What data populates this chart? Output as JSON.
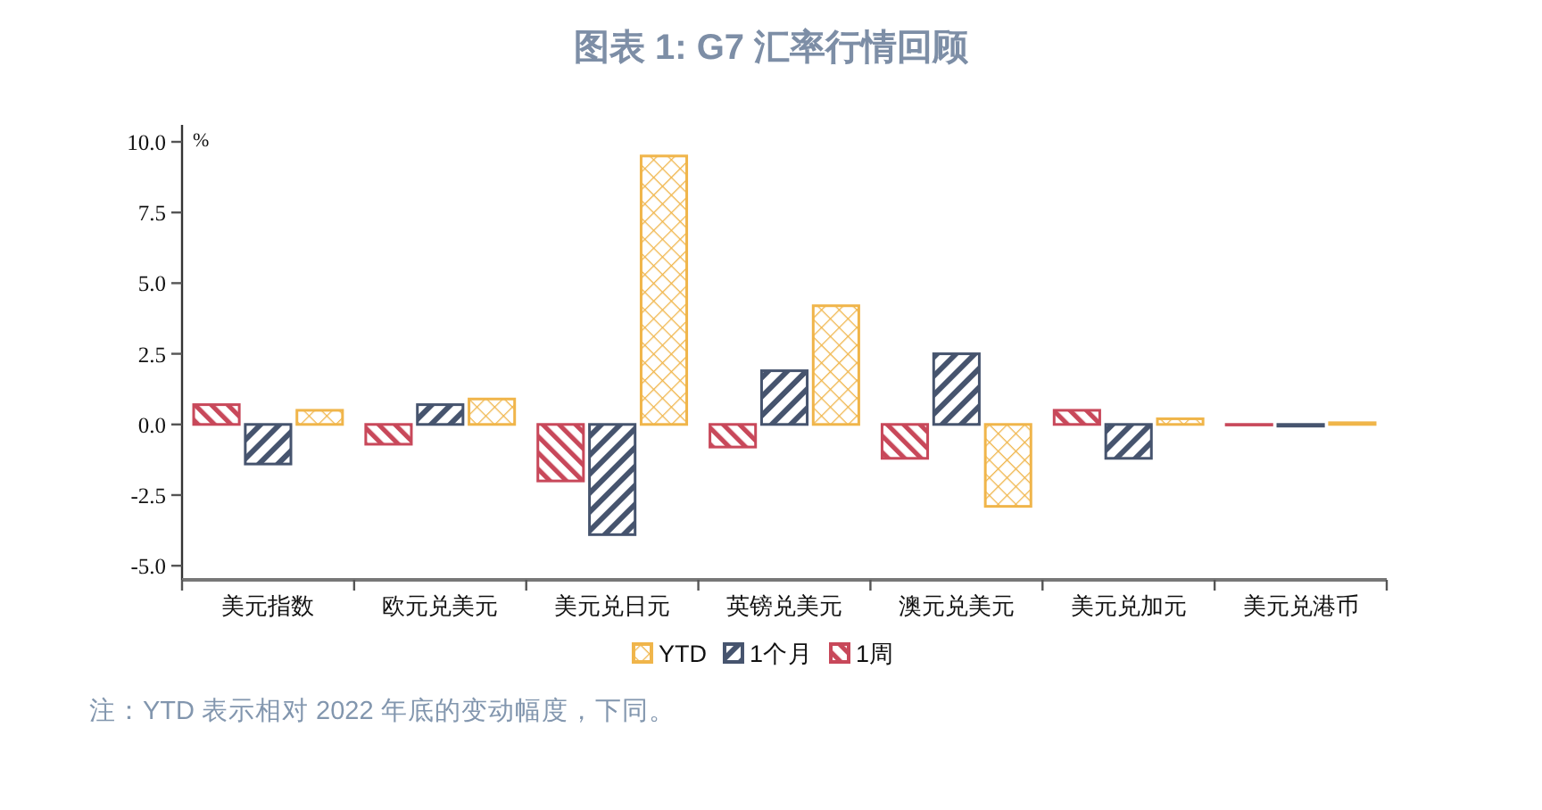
{
  "chart_data": {
    "type": "bar",
    "title": "图表 1: G7 汇率行情回顾",
    "ylabel": "%",
    "categories": [
      "美元指数",
      "欧元兑美元",
      "美元兑日元",
      "英镑兑美元",
      "澳元兑美元",
      "美元兑加元",
      "美元兑港币"
    ],
    "series": [
      {
        "name": "1周",
        "color": "#c8485a",
        "values": [
          0.7,
          -0.7,
          -2.0,
          -0.8,
          -1.2,
          0.5,
          -0.02
        ]
      },
      {
        "name": "1个月",
        "color": "#46546e",
        "values": [
          -1.4,
          0.7,
          -3.9,
          1.9,
          2.5,
          -1.2,
          -0.06
        ]
      },
      {
        "name": "YTD",
        "color": "#f0b54a",
        "values": [
          0.5,
          0.9,
          9.5,
          4.2,
          -2.9,
          0.2,
          0.06
        ]
      }
    ],
    "ylim": [
      -5.5,
      10.6
    ],
    "yticks": [
      {
        "value": -5,
        "label": "-5.0"
      },
      -2.5,
      {
        "value": 0,
        "label": "0.0"
      },
      2.5,
      {
        "value": 5,
        "label": "5.0"
      },
      7.5,
      {
        "value": 10,
        "label": "10.0"
      }
    ],
    "legend": "bottom",
    "annotations": [
      "注：YTD 表示相对 2022 年底的变动幅度，下同。"
    ]
  }
}
